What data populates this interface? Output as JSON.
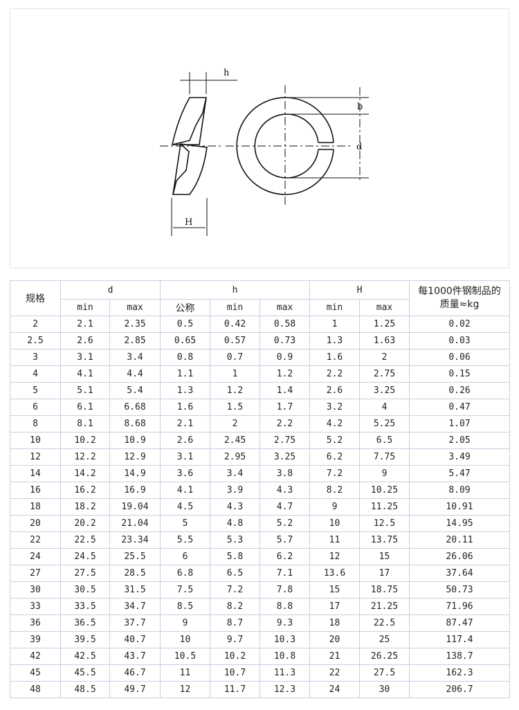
{
  "drawing": {
    "labels": {
      "h": "h",
      "H": "H",
      "b": "b",
      "d": "d"
    }
  },
  "table": {
    "header": {
      "spec": "规格",
      "d": "d",
      "h": "h",
      "H": "H",
      "mass_line1": "每1000件钢制品的",
      "mass_line2": "质量≈kg",
      "sub": [
        "min",
        "max",
        "公称",
        "min",
        "max",
        "min",
        "max"
      ]
    },
    "rows": [
      [
        "2",
        "2.1",
        "2.35",
        "0.5",
        "0.42",
        "0.58",
        "1",
        "1.25",
        "0.02"
      ],
      [
        "2.5",
        "2.6",
        "2.85",
        "0.65",
        "0.57",
        "0.73",
        "1.3",
        "1.63",
        "0.03"
      ],
      [
        "3",
        "3.1",
        "3.4",
        "0.8",
        "0.7",
        "0.9",
        "1.6",
        "2",
        "0.06"
      ],
      [
        "4",
        "4.1",
        "4.4",
        "1.1",
        "1",
        "1.2",
        "2.2",
        "2.75",
        "0.15"
      ],
      [
        "5",
        "5.1",
        "5.4",
        "1.3",
        "1.2",
        "1.4",
        "2.6",
        "3.25",
        "0.26"
      ],
      [
        "6",
        "6.1",
        "6.68",
        "1.6",
        "1.5",
        "1.7",
        "3.2",
        "4",
        "0.47"
      ],
      [
        "8",
        "8.1",
        "8.68",
        "2.1",
        "2",
        "2.2",
        "4.2",
        "5.25",
        "1.07"
      ],
      [
        "10",
        "10.2",
        "10.9",
        "2.6",
        "2.45",
        "2.75",
        "5.2",
        "6.5",
        "2.05"
      ],
      [
        "12",
        "12.2",
        "12.9",
        "3.1",
        "2.95",
        "3.25",
        "6.2",
        "7.75",
        "3.49"
      ],
      [
        "14",
        "14.2",
        "14.9",
        "3.6",
        "3.4",
        "3.8",
        "7.2",
        "9",
        "5.47"
      ],
      [
        "16",
        "16.2",
        "16.9",
        "4.1",
        "3.9",
        "4.3",
        "8.2",
        "10.25",
        "8.09"
      ],
      [
        "18",
        "18.2",
        "19.04",
        "4.5",
        "4.3",
        "4.7",
        "9",
        "11.25",
        "10.91"
      ],
      [
        "20",
        "20.2",
        "21.04",
        "5",
        "4.8",
        "5.2",
        "10",
        "12.5",
        "14.95"
      ],
      [
        "22",
        "22.5",
        "23.34",
        "5.5",
        "5.3",
        "5.7",
        "11",
        "13.75",
        "20.11"
      ],
      [
        "24",
        "24.5",
        "25.5",
        "6",
        "5.8",
        "6.2",
        "12",
        "15",
        "26.06"
      ],
      [
        "27",
        "27.5",
        "28.5",
        "6.8",
        "6.5",
        "7.1",
        "13.6",
        "17",
        "37.64"
      ],
      [
        "30",
        "30.5",
        "31.5",
        "7.5",
        "7.2",
        "7.8",
        "15",
        "18.75",
        "50.73"
      ],
      [
        "33",
        "33.5",
        "34.7",
        "8.5",
        "8.2",
        "8.8",
        "17",
        "21.25",
        "71.96"
      ],
      [
        "36",
        "36.5",
        "37.7",
        "9",
        "8.7",
        "9.3",
        "18",
        "22.5",
        "87.47"
      ],
      [
        "39",
        "39.5",
        "40.7",
        "10",
        "9.7",
        "10.3",
        "20",
        "25",
        "117.4"
      ],
      [
        "42",
        "42.5",
        "43.7",
        "10.5",
        "10.2",
        "10.8",
        "21",
        "26.25",
        "138.7"
      ],
      [
        "45",
        "45.5",
        "46.7",
        "11",
        "10.7",
        "11.3",
        "22",
        "27.5",
        "162.3"
      ],
      [
        "48",
        "48.5",
        "49.7",
        "12",
        "11.7",
        "12.3",
        "24",
        "30",
        "206.7"
      ]
    ]
  }
}
